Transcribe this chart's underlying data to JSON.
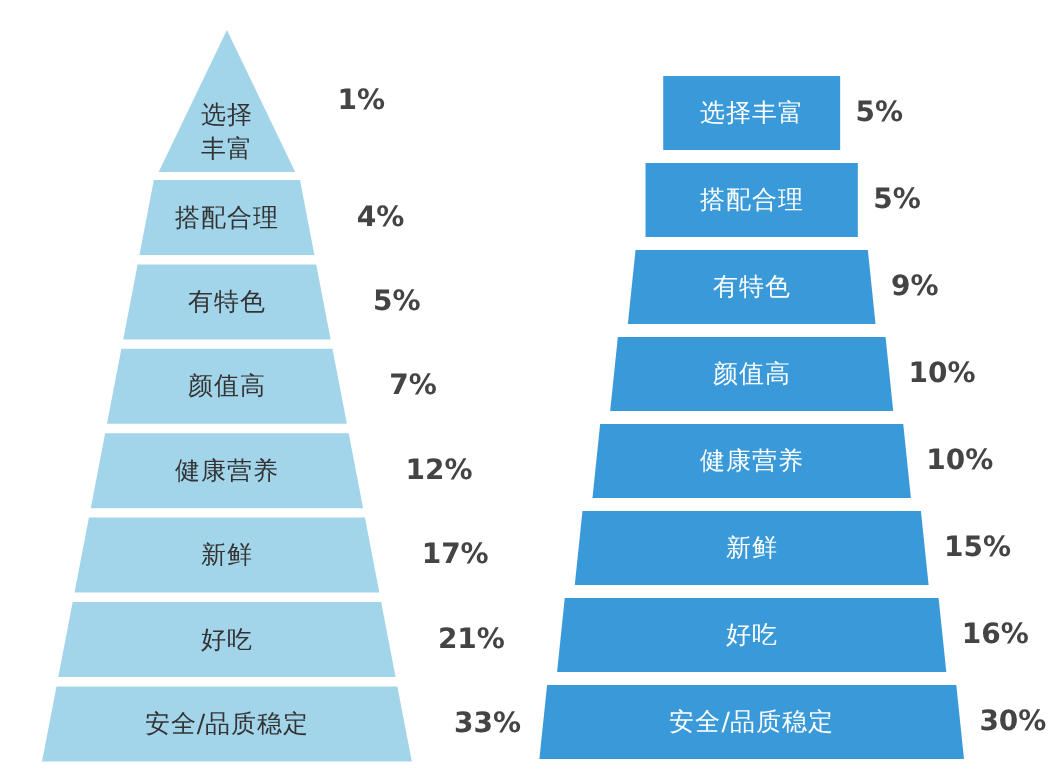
{
  "chart_data": [
    {
      "type": "other",
      "categories": [
        "选择丰富",
        "搭配合理",
        "有特色",
        "颜值高",
        "健康营养",
        "新鲜",
        "好吃",
        "安全/品质稳定"
      ],
      "values": [
        1,
        4,
        5,
        7,
        12,
        17,
        21,
        33
      ],
      "value_labels": [
        "1%",
        "4%",
        "5%",
        "7%",
        "12%",
        "17%",
        "21%",
        "33%"
      ],
      "color": "#a3d5ea"
    },
    {
      "type": "other",
      "categories": [
        "选择丰富",
        "搭配合理",
        "有特色",
        "颜值高",
        "健康营养",
        "新鲜",
        "好吃",
        "安全/品质稳定"
      ],
      "values": [
        5,
        5,
        9,
        10,
        10,
        15,
        16,
        30
      ],
      "value_labels": [
        "5%",
        "5%",
        "9%",
        "10%",
        "10%",
        "15%",
        "16%",
        "30%"
      ],
      "color": "#3a9ad9"
    }
  ]
}
